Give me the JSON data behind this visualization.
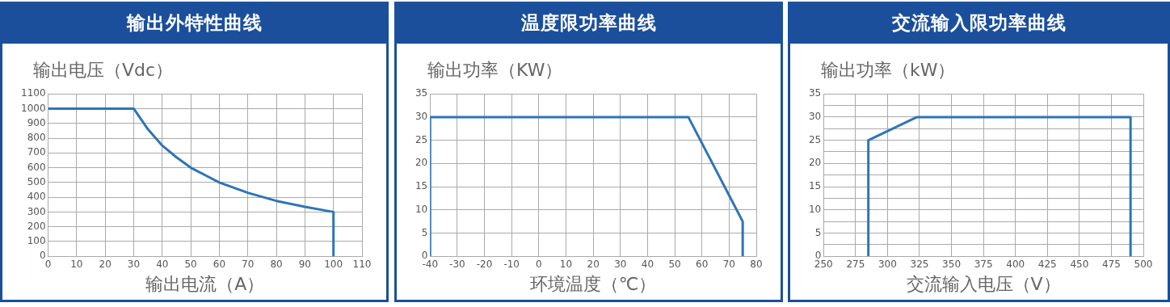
{
  "chart_data": [
    {
      "type": "line",
      "title": "输出外特性曲线",
      "xlabel": "输出电流（A）",
      "ylabel": "输出电压（Vdc）",
      "x": [
        0,
        30,
        35,
        40,
        45,
        50,
        60,
        70,
        80,
        90,
        100,
        100
      ],
      "series": [
        {
          "color": "#2e75b6",
          "values": [
            1000,
            1000,
            860,
            750,
            670,
            600,
            500,
            430,
            375,
            335,
            300,
            0
          ]
        }
      ],
      "xlim": [
        0,
        110
      ],
      "xticks": [
        0,
        10,
        20,
        30,
        40,
        50,
        60,
        70,
        80,
        90,
        100,
        110
      ],
      "ylim": [
        0,
        1100
      ],
      "yticks": [
        0,
        100,
        200,
        300,
        400,
        500,
        600,
        700,
        800,
        900,
        1000,
        1100
      ],
      "grid": true,
      "legend": false,
      "marker": "none",
      "line_style": "solid"
    },
    {
      "type": "line",
      "title": "温度限功率曲线",
      "xlabel": "环境温度（℃）",
      "ylabel": "输出功率（KW）",
      "x": [
        -40,
        -40,
        55,
        75,
        75
      ],
      "series": [
        {
          "color": "#2e75b6",
          "values": [
            0,
            30,
            30,
            7.5,
            0
          ]
        }
      ],
      "xlim": [
        -40,
        80
      ],
      "xticks": [
        -40,
        -30,
        -20,
        -10,
        0,
        10,
        20,
        30,
        40,
        50,
        60,
        70,
        80
      ],
      "ylim": [
        0,
        35
      ],
      "yticks": [
        0,
        5,
        10,
        15,
        20,
        25,
        30,
        35
      ],
      "grid": true,
      "legend": false,
      "marker": "none",
      "line_style": "solid"
    },
    {
      "type": "line",
      "title": "交流输入限功率曲线",
      "xlabel": "交流输入电压（V）",
      "ylabel": "输出功率（kW）",
      "x": [
        285,
        285,
        323,
        490,
        490
      ],
      "series": [
        {
          "color": "#2e75b6",
          "values": [
            0,
            25,
            30,
            30,
            0
          ]
        }
      ],
      "xlim": [
        250,
        500
      ],
      "xticks": [
        250,
        275,
        300,
        325,
        350,
        375,
        400,
        425,
        450,
        475,
        500
      ],
      "ylim": [
        0,
        35
      ],
      "yticks": [
        0,
        {
          "value": 2.5,
          "label": null
        },
        5,
        {
          "value": 7.5,
          "label": null
        },
        10,
        {
          "value": 12.5,
          "label": null
        },
        15,
        {
          "value": 17.5,
          "label": null
        },
        20,
        {
          "value": 22.5,
          "label": null
        },
        25,
        {
          "value": 27.5,
          "label": null
        },
        30,
        {
          "value": 32.5,
          "label": null
        },
        35
      ],
      "grid": true,
      "legend": false,
      "marker": "none",
      "line_style": "solid"
    }
  ]
}
